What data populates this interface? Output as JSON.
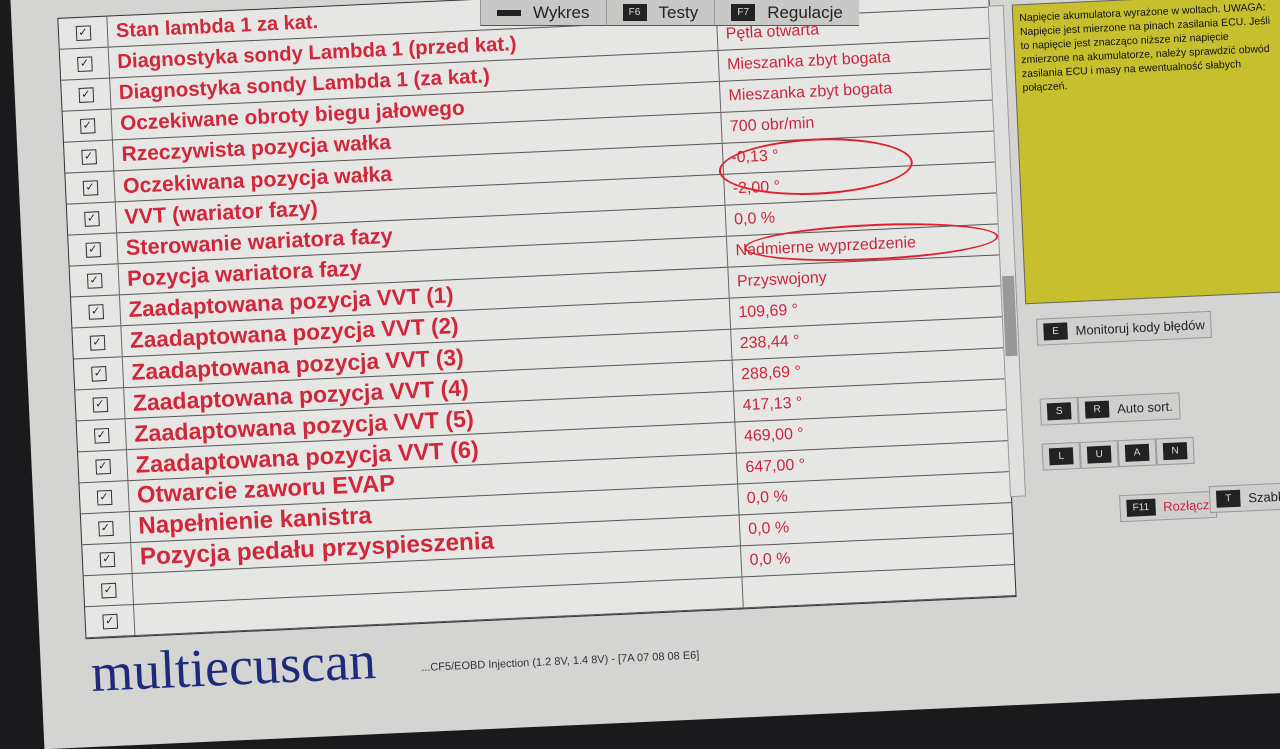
{
  "tabs": [
    {
      "key": "",
      "label": "Wykres"
    },
    {
      "key": "F6",
      "label": "Testy"
    },
    {
      "key": "F7",
      "label": "Regulacje"
    }
  ],
  "rows": [
    {
      "label": "Stan lambda 1 za kat.",
      "value": ""
    },
    {
      "label": "Diagnostyka sondy Lambda 1 (przed kat.)",
      "value": "Pętla otwarta"
    },
    {
      "label": "Diagnostyka sondy Lambda 1 (za kat.)",
      "value": "Mieszanka zbyt bogata"
    },
    {
      "label": "Oczekiwane obroty biegu jałowego",
      "value": "Mieszanka zbyt bogata"
    },
    {
      "label": "Rzeczywista pozycja wałka",
      "value": "700 obr/min"
    },
    {
      "label": "Oczekiwana pozycja wałka",
      "value": "-0,13 °"
    },
    {
      "label": "VVT (wariator fazy)",
      "value": "-2,00 °"
    },
    {
      "label": "Sterowanie wariatora fazy",
      "value": "0,0 %"
    },
    {
      "label": "Pozycja wariatora fazy",
      "value": "Nadmierne wyprzedzenie"
    },
    {
      "label": "Zaadaptowana pozycja VVT (1)",
      "value": "Przyswojony"
    },
    {
      "label": "Zaadaptowana pozycja VVT (2)",
      "value": "109,69 °"
    },
    {
      "label": "Zaadaptowana pozycja VVT (3)",
      "value": "238,44 °"
    },
    {
      "label": "Zaadaptowana pozycja VVT (4)",
      "value": "288,69 °"
    },
    {
      "label": "Zaadaptowana pozycja VVT (5)",
      "value": "417,13 °"
    },
    {
      "label": "Zaadaptowana pozycja VVT (6)",
      "value": "469,00 °"
    },
    {
      "label": "Otwarcie zaworu EVAP",
      "value": "647,00 °"
    },
    {
      "label": "Napełnienie kanistra",
      "value": "0,0 %"
    },
    {
      "label": "Pozycja pedału przyspieszenia",
      "value": "0,0 %"
    },
    {
      "label": "",
      "value": "0,0 %"
    },
    {
      "label": "",
      "value": ""
    }
  ],
  "help_text": "Napięcie akumulatora wyrażone w woltach. UWAGA: Napięcie jest mierzone na pinach zasilania ECU. Jeśli to napięcie jest znacząco niższe niż napięcie zmierzone na akumulatorze, należy sprawdzić obwód zasilania ECU i masy na ewentualność słabych połączeń.",
  "buttons": {
    "monitor": {
      "key": "E",
      "label": "Monitoruj kody błędów"
    },
    "s": {
      "key": "S"
    },
    "autosort": {
      "key": "R",
      "label": "Auto sort."
    },
    "l": {
      "key": "L"
    },
    "u": {
      "key": "U"
    },
    "a": {
      "key": "A"
    },
    "n": {
      "key": "N"
    },
    "disconnect": {
      "key": "F11",
      "label": "Rozłącz"
    },
    "templates": {
      "key": "T",
      "label": "Szablony"
    }
  },
  "logo": "multiecuscan",
  "status": "...CF5/EOBD Injection (1.2 8V, 1.4 8V) - [7A 07 08 08 E6]",
  "colors": {
    "label": "#d0283a",
    "help_bg": "#c7bf2e",
    "annotation": "#e0202a",
    "logo": "#1f2b7a"
  }
}
